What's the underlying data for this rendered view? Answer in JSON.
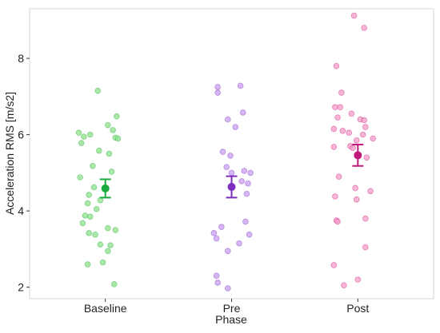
{
  "chart_data": {
    "type": "scatter",
    "xlabel": "Phase",
    "ylabel": "Acceleration RMS [m/s2]",
    "categories": [
      "Baseline",
      "Pre",
      "Post"
    ],
    "ylim": [
      1.7,
      9.3
    ],
    "yticks": [
      2,
      4,
      6,
      8
    ],
    "grid": false,
    "legend": "none",
    "colors": {
      "Baseline": "#1aaa3c",
      "Pre": "#7b2fbe",
      "Post": "#c2187a"
    },
    "point_colors": {
      "Baseline": "#8fe08a",
      "Pre": "#c89ef0",
      "Post": "#f59cc8"
    },
    "series": [
      {
        "category": "Baseline",
        "summary": {
          "mean": 4.59,
          "lower": 4.35,
          "upper": 4.83
        },
        "points": [
          {
            "x": 0.94,
            "y": 7.15
          },
          {
            "x": 1.09,
            "y": 6.48
          },
          {
            "x": 1.02,
            "y": 6.25
          },
          {
            "x": 1.06,
            "y": 6.12
          },
          {
            "x": 0.79,
            "y": 6.05
          },
          {
            "x": 0.83,
            "y": 5.95
          },
          {
            "x": 0.88,
            "y": 6.0
          },
          {
            "x": 1.08,
            "y": 5.92
          },
          {
            "x": 1.1,
            "y": 5.9
          },
          {
            "x": 0.81,
            "y": 5.78
          },
          {
            "x": 0.95,
            "y": 5.58
          },
          {
            "x": 1.03,
            "y": 5.5
          },
          {
            "x": 0.9,
            "y": 5.18
          },
          {
            "x": 1.05,
            "y": 5.03
          },
          {
            "x": 0.8,
            "y": 4.88
          },
          {
            "x": 0.91,
            "y": 4.62
          },
          {
            "x": 0.87,
            "y": 4.42
          },
          {
            "x": 0.96,
            "y": 4.28
          },
          {
            "x": 0.86,
            "y": 4.2
          },
          {
            "x": 0.93,
            "y": 4.05
          },
          {
            "x": 0.84,
            "y": 3.88
          },
          {
            "x": 0.88,
            "y": 3.85
          },
          {
            "x": 0.82,
            "y": 3.68
          },
          {
            "x": 1.02,
            "y": 3.55
          },
          {
            "x": 1.08,
            "y": 3.5
          },
          {
            "x": 0.87,
            "y": 3.42
          },
          {
            "x": 0.92,
            "y": 3.38
          },
          {
            "x": 0.96,
            "y": 3.12
          },
          {
            "x": 1.04,
            "y": 3.1
          },
          {
            "x": 1.02,
            "y": 2.95
          },
          {
            "x": 0.98,
            "y": 2.65
          },
          {
            "x": 0.86,
            "y": 2.6
          },
          {
            "x": 1.07,
            "y": 2.08
          }
        ]
      },
      {
        "category": "Pre",
        "summary": {
          "mean": 4.63,
          "lower": 4.35,
          "upper": 4.91
        },
        "points": [
          {
            "x": 1.89,
            "y": 7.25
          },
          {
            "x": 2.07,
            "y": 7.28
          },
          {
            "x": 1.89,
            "y": 7.1
          },
          {
            "x": 2.09,
            "y": 6.58
          },
          {
            "x": 1.97,
            "y": 6.4
          },
          {
            "x": 2.03,
            "y": 6.2
          },
          {
            "x": 1.93,
            "y": 5.55
          },
          {
            "x": 1.99,
            "y": 5.45
          },
          {
            "x": 1.96,
            "y": 5.15
          },
          {
            "x": 2.1,
            "y": 5.05
          },
          {
            "x": 2.0,
            "y": 5.0
          },
          {
            "x": 2.15,
            "y": 5.0
          },
          {
            "x": 2.08,
            "y": 4.78
          },
          {
            "x": 2.13,
            "y": 4.72
          },
          {
            "x": 2.12,
            "y": 4.45
          },
          {
            "x": 2.11,
            "y": 3.72
          },
          {
            "x": 1.92,
            "y": 3.58
          },
          {
            "x": 1.86,
            "y": 3.42
          },
          {
            "x": 2.14,
            "y": 3.38
          },
          {
            "x": 1.88,
            "y": 3.28
          },
          {
            "x": 2.06,
            "y": 3.15
          },
          {
            "x": 1.97,
            "y": 2.95
          },
          {
            "x": 1.88,
            "y": 2.3
          },
          {
            "x": 1.89,
            "y": 2.12
          },
          {
            "x": 1.97,
            "y": 1.97
          }
        ]
      },
      {
        "category": "Post",
        "summary": {
          "mean": 5.46,
          "lower": 5.18,
          "upper": 5.74
        },
        "points": [
          {
            "x": 2.97,
            "y": 9.12
          },
          {
            "x": 3.05,
            "y": 8.8
          },
          {
            "x": 2.83,
            "y": 7.8
          },
          {
            "x": 2.87,
            "y": 7.1
          },
          {
            "x": 2.82,
            "y": 6.72
          },
          {
            "x": 2.86,
            "y": 6.72
          },
          {
            "x": 2.95,
            "y": 6.55
          },
          {
            "x": 2.84,
            "y": 6.45
          },
          {
            "x": 3.02,
            "y": 6.4
          },
          {
            "x": 3.05,
            "y": 6.38
          },
          {
            "x": 3.06,
            "y": 6.2
          },
          {
            "x": 2.81,
            "y": 6.15
          },
          {
            "x": 2.88,
            "y": 6.1
          },
          {
            "x": 2.93,
            "y": 6.05
          },
          {
            "x": 3.04,
            "y": 6.0
          },
          {
            "x": 2.99,
            "y": 5.85
          },
          {
            "x": 3.12,
            "y": 5.9
          },
          {
            "x": 2.81,
            "y": 5.68
          },
          {
            "x": 2.94,
            "y": 5.7
          },
          {
            "x": 2.96,
            "y": 5.65
          },
          {
            "x": 3.07,
            "y": 5.4
          },
          {
            "x": 2.85,
            "y": 4.9
          },
          {
            "x": 2.98,
            "y": 4.6
          },
          {
            "x": 3.1,
            "y": 4.52
          },
          {
            "x": 2.82,
            "y": 4.38
          },
          {
            "x": 2.99,
            "y": 4.3
          },
          {
            "x": 3.06,
            "y": 3.8
          },
          {
            "x": 2.83,
            "y": 3.75
          },
          {
            "x": 2.84,
            "y": 3.72
          },
          {
            "x": 3.06,
            "y": 3.05
          },
          {
            "x": 2.81,
            "y": 2.58
          },
          {
            "x": 3.0,
            "y": 2.2
          },
          {
            "x": 2.89,
            "y": 2.05
          }
        ]
      }
    ]
  }
}
